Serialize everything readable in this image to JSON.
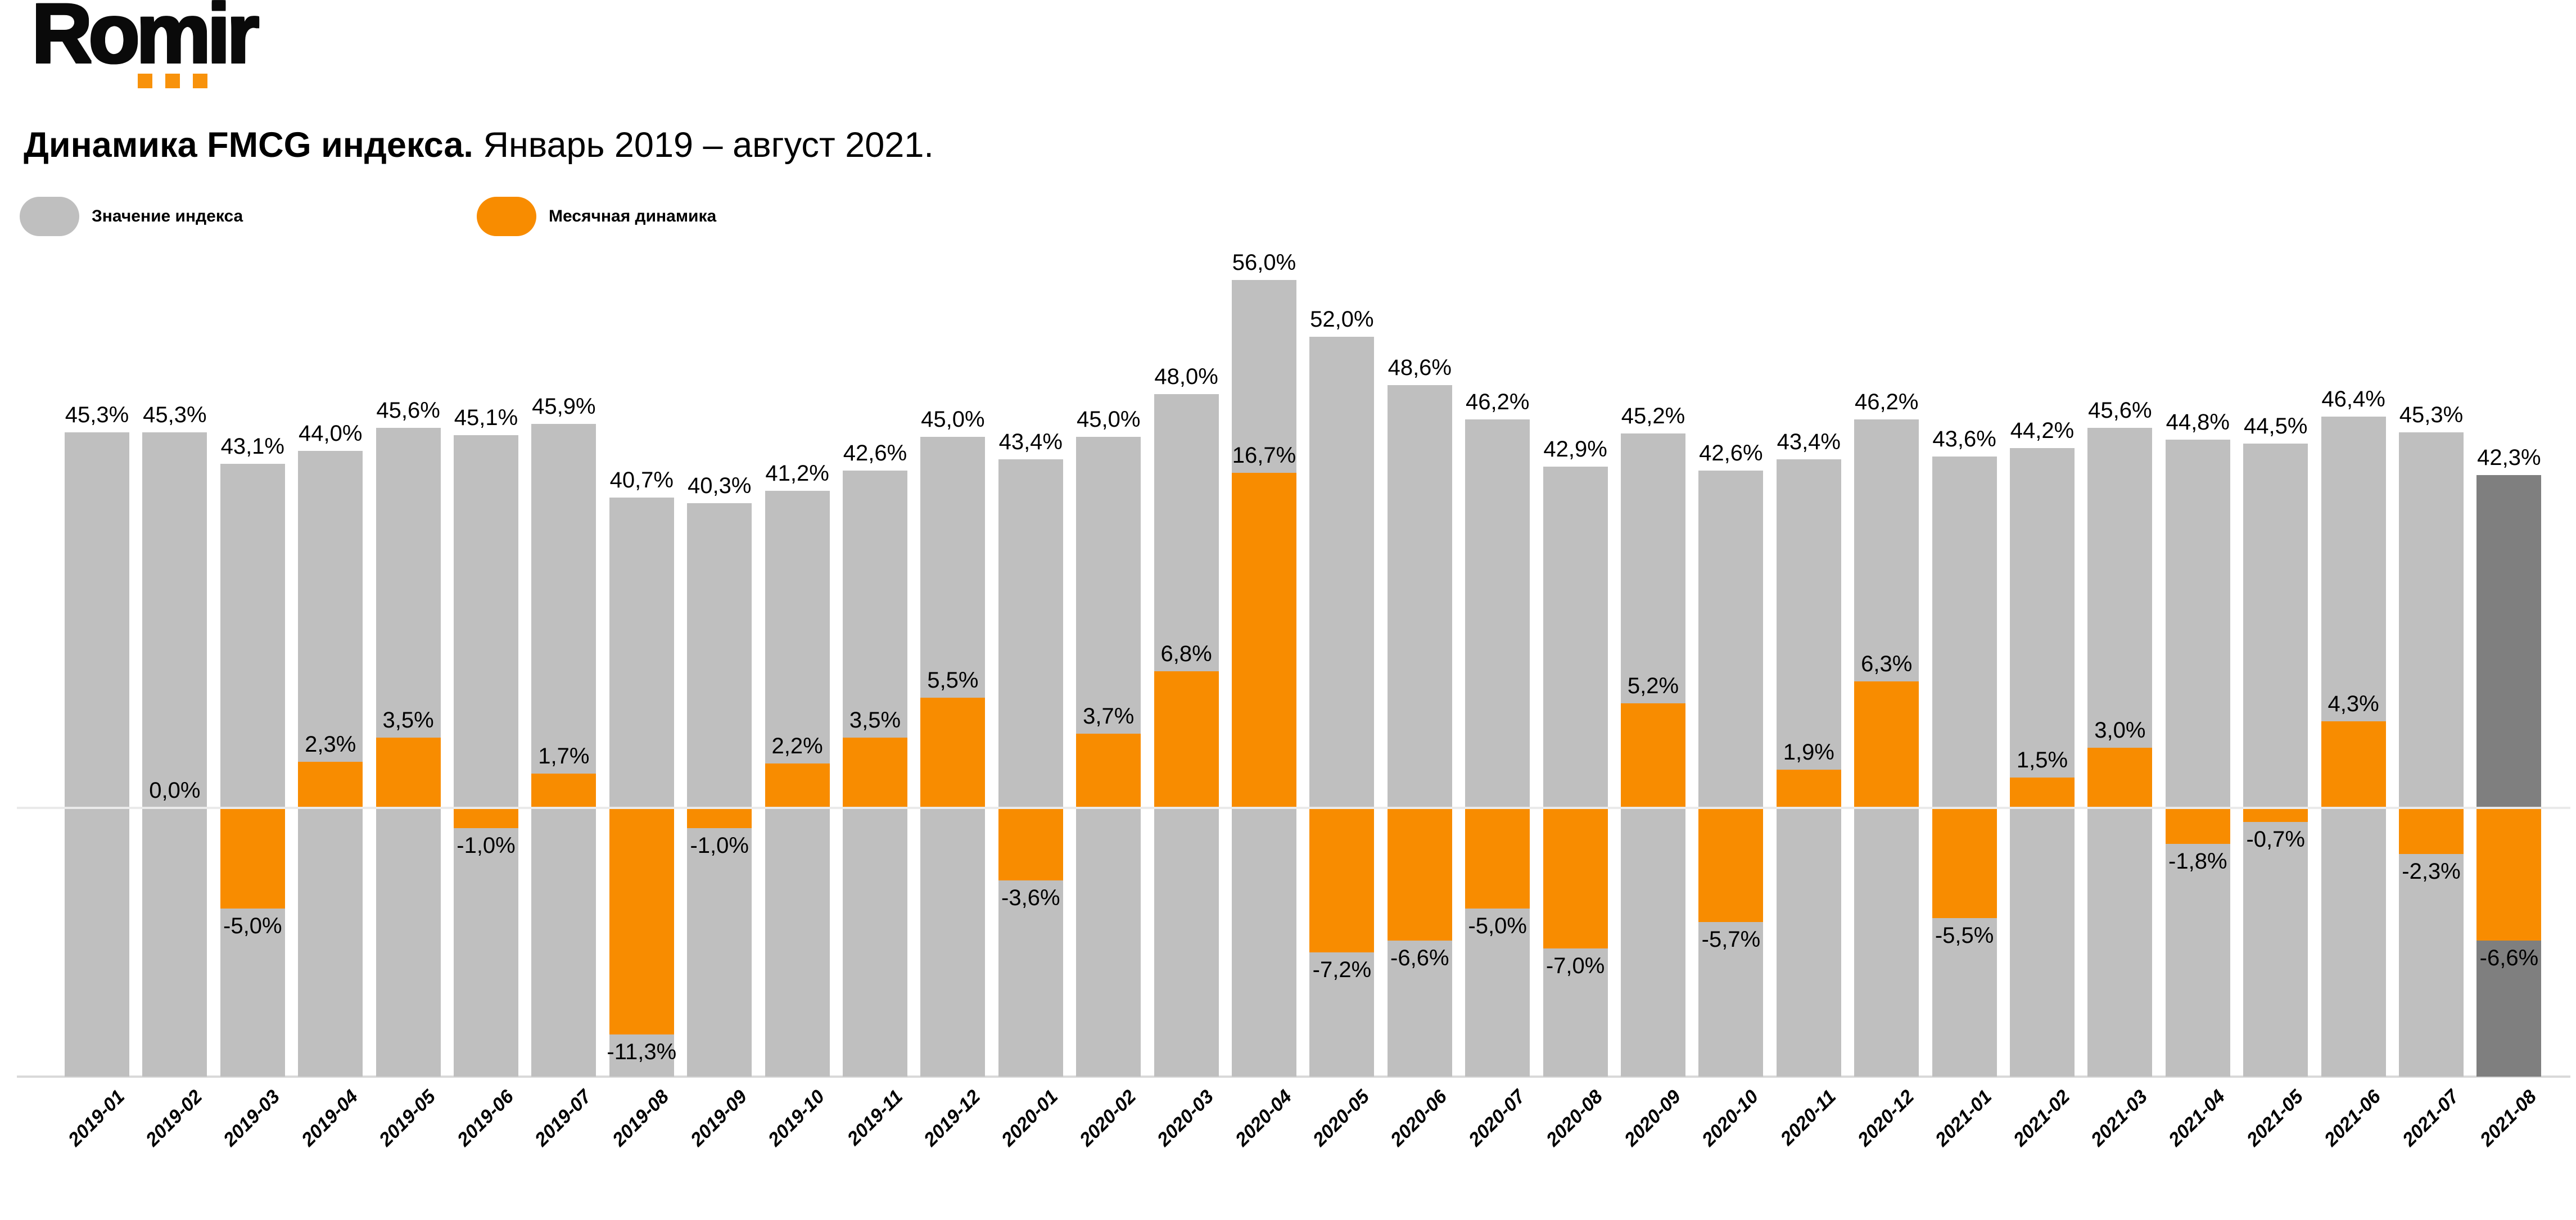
{
  "logo": {
    "text": "Romir",
    "dot_color": "#f8920b",
    "dots": 3
  },
  "title": {
    "bold": "Динамика FMCG индекса.",
    "rest": " Январь 2019 – август 2021."
  },
  "legend": [
    {
      "label": "Значение индекса",
      "color": "#bfbfbf"
    },
    {
      "label": "Месячная динамика",
      "color": "#f88c00"
    }
  ],
  "chart_data": {
    "type": "bar",
    "title": "Динамика FMCG индекса. Январь 2019 – август 2021.",
    "value_suffix": "%",
    "decimal_separator": ",",
    "grid": "off",
    "legend_position": "top-left",
    "categories": [
      "2019-01",
      "2019-02",
      "2019-03",
      "2019-04",
      "2019-05",
      "2019-06",
      "2019-07",
      "2019-08",
      "2019-09",
      "2019-10",
      "2019-11",
      "2019-12",
      "2020-01",
      "2020-02",
      "2020-03",
      "2020-04",
      "2020-05",
      "2020-06",
      "2020-07",
      "2020-08",
      "2020-09",
      "2020-10",
      "2020-11",
      "2020-12",
      "2021-01",
      "2021-02",
      "2021-03",
      "2021-04",
      "2021-05",
      "2021-06",
      "2021-07",
      "2021-08"
    ],
    "series": [
      {
        "name": "Значение индекса",
        "color": "#bfbfbf",
        "last_bar_color": "#7f7f7f",
        "values": [
          45.3,
          45.3,
          43.1,
          44.0,
          45.6,
          45.1,
          45.9,
          40.7,
          40.3,
          41.2,
          42.6,
          45.0,
          43.4,
          45.0,
          48.0,
          56.0,
          52.0,
          48.6,
          46.2,
          42.9,
          45.2,
          42.6,
          43.4,
          46.2,
          43.6,
          44.2,
          45.6,
          44.8,
          44.5,
          46.4,
          45.3,
          42.3
        ]
      },
      {
        "name": "Месячная динамика",
        "color": "#f88c00",
        "values": [
          null,
          0.0,
          -5.0,
          2.3,
          3.5,
          -1.0,
          1.7,
          -11.3,
          -1.0,
          2.2,
          3.5,
          5.5,
          -3.6,
          3.7,
          6.8,
          16.7,
          -7.2,
          -6.6,
          -5.0,
          -7.0,
          5.2,
          -5.7,
          1.9,
          6.3,
          -5.5,
          1.5,
          3.0,
          -1.8,
          -0.7,
          4.3,
          -2.3,
          -6.6
        ]
      }
    ]
  }
}
